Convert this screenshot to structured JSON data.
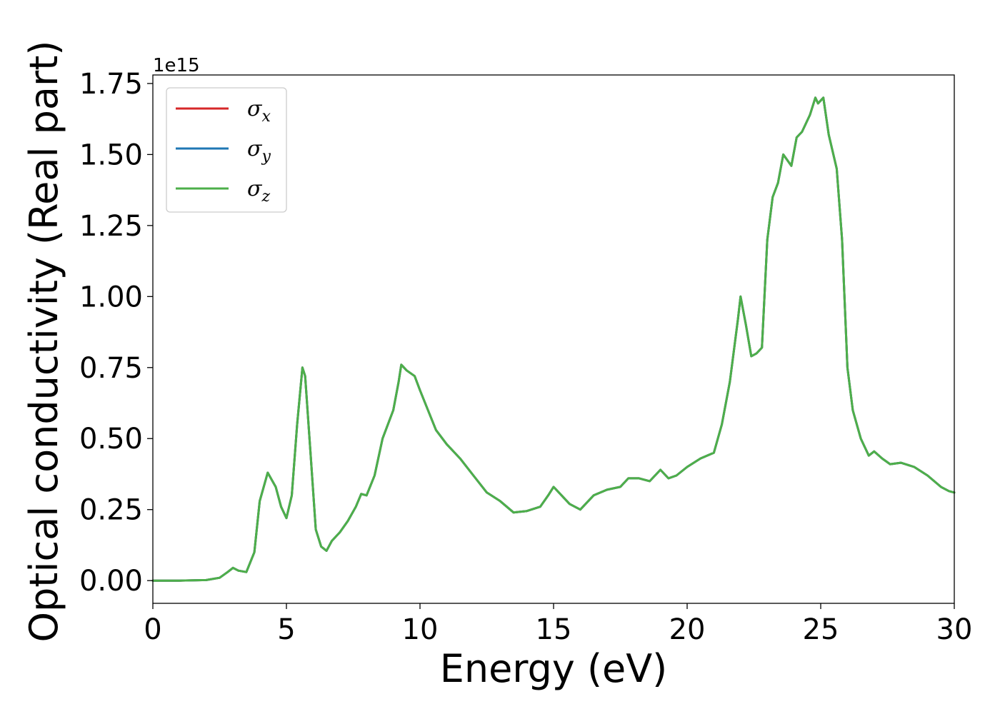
{
  "chart_data": {
    "type": "line",
    "xlabel": "Energy (eV)",
    "ylabel": "Optical conductivity (Real part)",
    "y_multiplier": "1e15",
    "xlim": [
      0,
      30
    ],
    "ylim": [
      -0.08,
      1.78
    ],
    "x_ticks": [
      0,
      5,
      10,
      15,
      20,
      25,
      30
    ],
    "y_ticks": [
      0.0,
      0.25,
      0.5,
      0.75,
      1.0,
      1.25,
      1.5,
      1.75
    ],
    "x_tick_labels": [
      "0",
      "5",
      "10",
      "15",
      "20",
      "25",
      "30"
    ],
    "y_tick_labels": [
      "0.00",
      "0.25",
      "0.50",
      "0.75",
      "1.00",
      "1.25",
      "1.50",
      "1.75"
    ],
    "grid": false,
    "legend": "top-left",
    "x": [
      0,
      1,
      2,
      2.5,
      2.8,
      3.0,
      3.2,
      3.5,
      3.8,
      4.0,
      4.3,
      4.6,
      4.8,
      5.0,
      5.2,
      5.4,
      5.6,
      5.7,
      5.9,
      6.1,
      6.3,
      6.5,
      6.7,
      7.0,
      7.3,
      7.6,
      7.8,
      8.0,
      8.3,
      8.6,
      9.0,
      9.2,
      9.3,
      9.5,
      9.8,
      10.0,
      10.3,
      10.6,
      11.0,
      11.5,
      12.0,
      12.5,
      13.0,
      13.5,
      14.0,
      14.5,
      14.8,
      15.0,
      15.3,
      15.6,
      16.0,
      16.5,
      17.0,
      17.5,
      17.8,
      18.2,
      18.6,
      19.0,
      19.3,
      19.6,
      20.0,
      20.5,
      21.0,
      21.3,
      21.6,
      21.9,
      22.0,
      22.2,
      22.4,
      22.6,
      22.8,
      23.0,
      23.2,
      23.4,
      23.6,
      23.9,
      24.1,
      24.3,
      24.6,
      24.8,
      24.9,
      25.0,
      25.1,
      25.3,
      25.6,
      25.8,
      26.0,
      26.2,
      26.5,
      26.8,
      27.0,
      27.3,
      27.6,
      28.0,
      28.5,
      29.0,
      29.5,
      29.8,
      30.0
    ],
    "series": [
      {
        "name": "σx",
        "symbol": "σ",
        "subscript": "x",
        "color": "#d62728",
        "values": [
          0.0,
          0.0,
          0.002,
          0.01,
          0.03,
          0.045,
          0.035,
          0.03,
          0.1,
          0.28,
          0.38,
          0.33,
          0.26,
          0.22,
          0.3,
          0.55,
          0.75,
          0.72,
          0.45,
          0.18,
          0.12,
          0.105,
          0.14,
          0.17,
          0.21,
          0.26,
          0.305,
          0.3,
          0.37,
          0.5,
          0.6,
          0.7,
          0.76,
          0.74,
          0.72,
          0.67,
          0.6,
          0.53,
          0.48,
          0.43,
          0.37,
          0.31,
          0.28,
          0.24,
          0.245,
          0.26,
          0.3,
          0.33,
          0.3,
          0.27,
          0.25,
          0.3,
          0.32,
          0.33,
          0.36,
          0.36,
          0.35,
          0.39,
          0.36,
          0.37,
          0.4,
          0.43,
          0.45,
          0.55,
          0.7,
          0.92,
          1.0,
          0.9,
          0.79,
          0.8,
          0.82,
          1.2,
          1.35,
          1.4,
          1.5,
          1.46,
          1.56,
          1.58,
          1.64,
          1.7,
          1.68,
          1.69,
          1.7,
          1.57,
          1.45,
          1.2,
          0.75,
          0.6,
          0.5,
          0.44,
          0.455,
          0.43,
          0.41,
          0.415,
          0.4,
          0.37,
          0.33,
          0.315,
          0.31
        ]
      },
      {
        "name": "σy",
        "symbol": "σ",
        "subscript": "y",
        "color": "#1f77b4",
        "values": [
          0.0,
          0.0,
          0.002,
          0.01,
          0.03,
          0.045,
          0.035,
          0.03,
          0.1,
          0.28,
          0.38,
          0.33,
          0.26,
          0.22,
          0.3,
          0.55,
          0.75,
          0.72,
          0.45,
          0.18,
          0.12,
          0.105,
          0.14,
          0.17,
          0.21,
          0.26,
          0.305,
          0.3,
          0.37,
          0.5,
          0.6,
          0.7,
          0.76,
          0.74,
          0.72,
          0.67,
          0.6,
          0.53,
          0.48,
          0.43,
          0.37,
          0.31,
          0.28,
          0.24,
          0.245,
          0.26,
          0.3,
          0.33,
          0.3,
          0.27,
          0.25,
          0.3,
          0.32,
          0.33,
          0.36,
          0.36,
          0.35,
          0.39,
          0.36,
          0.37,
          0.4,
          0.43,
          0.45,
          0.55,
          0.7,
          0.92,
          1.0,
          0.9,
          0.79,
          0.8,
          0.82,
          1.2,
          1.35,
          1.4,
          1.5,
          1.46,
          1.56,
          1.58,
          1.64,
          1.7,
          1.68,
          1.69,
          1.7,
          1.57,
          1.45,
          1.2,
          0.75,
          0.6,
          0.5,
          0.44,
          0.455,
          0.43,
          0.41,
          0.415,
          0.4,
          0.37,
          0.33,
          0.315,
          0.31
        ]
      },
      {
        "name": "σz",
        "symbol": "σ",
        "subscript": "z",
        "color": "#4daf4a",
        "values": [
          0.0,
          0.0,
          0.002,
          0.01,
          0.03,
          0.045,
          0.035,
          0.03,
          0.1,
          0.28,
          0.38,
          0.33,
          0.26,
          0.22,
          0.3,
          0.55,
          0.75,
          0.72,
          0.45,
          0.18,
          0.12,
          0.105,
          0.14,
          0.17,
          0.21,
          0.26,
          0.305,
          0.3,
          0.37,
          0.5,
          0.6,
          0.7,
          0.76,
          0.74,
          0.72,
          0.67,
          0.6,
          0.53,
          0.48,
          0.43,
          0.37,
          0.31,
          0.28,
          0.24,
          0.245,
          0.26,
          0.3,
          0.33,
          0.3,
          0.27,
          0.25,
          0.3,
          0.32,
          0.33,
          0.36,
          0.36,
          0.35,
          0.39,
          0.36,
          0.37,
          0.4,
          0.43,
          0.45,
          0.55,
          0.7,
          0.92,
          1.0,
          0.9,
          0.79,
          0.8,
          0.82,
          1.2,
          1.35,
          1.4,
          1.5,
          1.46,
          1.56,
          1.58,
          1.64,
          1.7,
          1.68,
          1.69,
          1.7,
          1.57,
          1.45,
          1.2,
          0.75,
          0.6,
          0.5,
          0.44,
          0.455,
          0.43,
          0.41,
          0.415,
          0.4,
          0.37,
          0.33,
          0.315,
          0.31
        ]
      }
    ]
  }
}
